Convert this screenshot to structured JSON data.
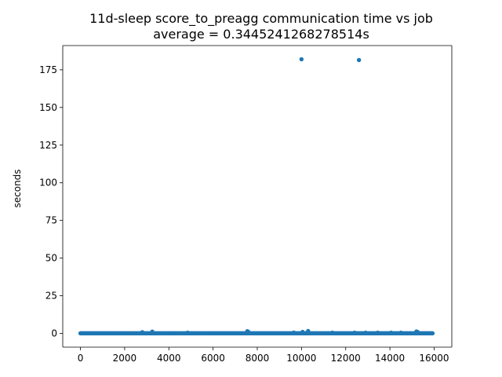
{
  "chart_data": {
    "type": "scatter",
    "title": "11d-sleep score_to_preagg communication time vs job",
    "subtitle": "average = 0.3445241268278514s",
    "xlabel": "",
    "ylabel": "seconds",
    "xlim": [
      -800,
      16800
    ],
    "ylim": [
      -9.1,
      191.1
    ],
    "xticks": [
      0,
      2000,
      4000,
      6000,
      8000,
      10000,
      12000,
      14000,
      16000
    ],
    "yticks": [
      0,
      25,
      50,
      75,
      100,
      125,
      150,
      175
    ],
    "grid": false,
    "color": "#1f77b4",
    "series": [
      {
        "x_range": [
          0,
          15950
        ],
        "baseline_value": 0.1,
        "x": [
          2800,
          3250,
          4850,
          7550,
          7600,
          9650,
          10050,
          10300,
          11400,
          12400,
          12900,
          13450,
          14050,
          14500,
          15200,
          15250,
          10000,
          12600
        ],
        "y": [
          0.8,
          1.2,
          0.5,
          1.5,
          1.0,
          0.6,
          1.0,
          1.6,
          0.5,
          0.5,
          0.5,
          0.5,
          0.5,
          0.5,
          1.3,
          1.0,
          182,
          181.5
        ]
      }
    ]
  }
}
